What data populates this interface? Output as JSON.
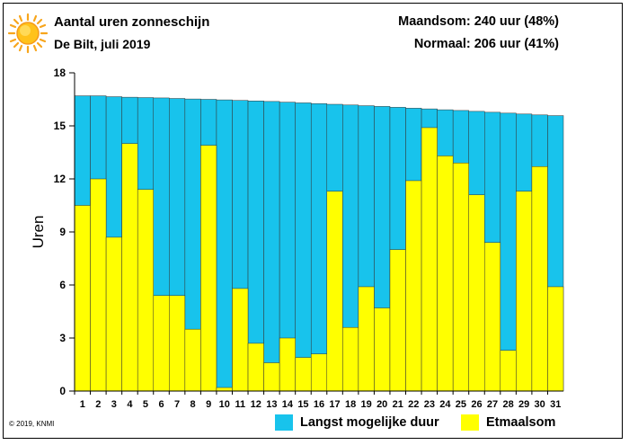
{
  "header": {
    "title": "Aantal uren zonneschijn",
    "subtitle": "De Bilt, juli 2019",
    "month_total": "Maandsom: 240 uur (48%)",
    "normal": "Normaal: 206 uur (41%)"
  },
  "credit": "© 2019, KNMI",
  "colors": {
    "max": "#18c3ec",
    "actual": "#ffff00",
    "axis": "#000000"
  },
  "icons": {
    "sun": "sun-icon"
  },
  "chart_data": {
    "type": "bar",
    "ylabel": "Uren",
    "ylim": [
      0,
      18
    ],
    "yticks": [
      0,
      3,
      6,
      9,
      12,
      15,
      18
    ],
    "categories": [
      "1",
      "2",
      "3",
      "4",
      "5",
      "6",
      "7",
      "8",
      "9",
      "10",
      "11",
      "12",
      "13",
      "14",
      "15",
      "16",
      "17",
      "18",
      "19",
      "20",
      "21",
      "22",
      "23",
      "24",
      "25",
      "26",
      "27",
      "28",
      "29",
      "30",
      "31"
    ],
    "series": [
      {
        "name": "Langst mogelijke duur",
        "color": "#18c3ec",
        "values": [
          16.7,
          16.7,
          16.65,
          16.62,
          16.6,
          16.58,
          16.55,
          16.52,
          16.5,
          16.47,
          16.44,
          16.41,
          16.38,
          16.34,
          16.3,
          16.26,
          16.22,
          16.18,
          16.14,
          16.1,
          16.05,
          16.0,
          15.96,
          15.91,
          15.87,
          15.82,
          15.77,
          15.72,
          15.67,
          15.62,
          15.58
        ]
      },
      {
        "name": "Etmaalsom",
        "color": "#ffff00",
        "values": [
          10.5,
          12.0,
          8.7,
          14.0,
          11.4,
          5.4,
          5.4,
          3.5,
          13.9,
          0.2,
          5.8,
          2.7,
          1.6,
          3.0,
          1.9,
          2.1,
          11.3,
          3.6,
          5.9,
          4.7,
          8.0,
          11.9,
          14.9,
          13.3,
          12.9,
          11.1,
          8.4,
          2.3,
          11.3,
          12.7,
          5.9
        ]
      }
    ],
    "legend_position": "bottom-right",
    "grid": false
  }
}
